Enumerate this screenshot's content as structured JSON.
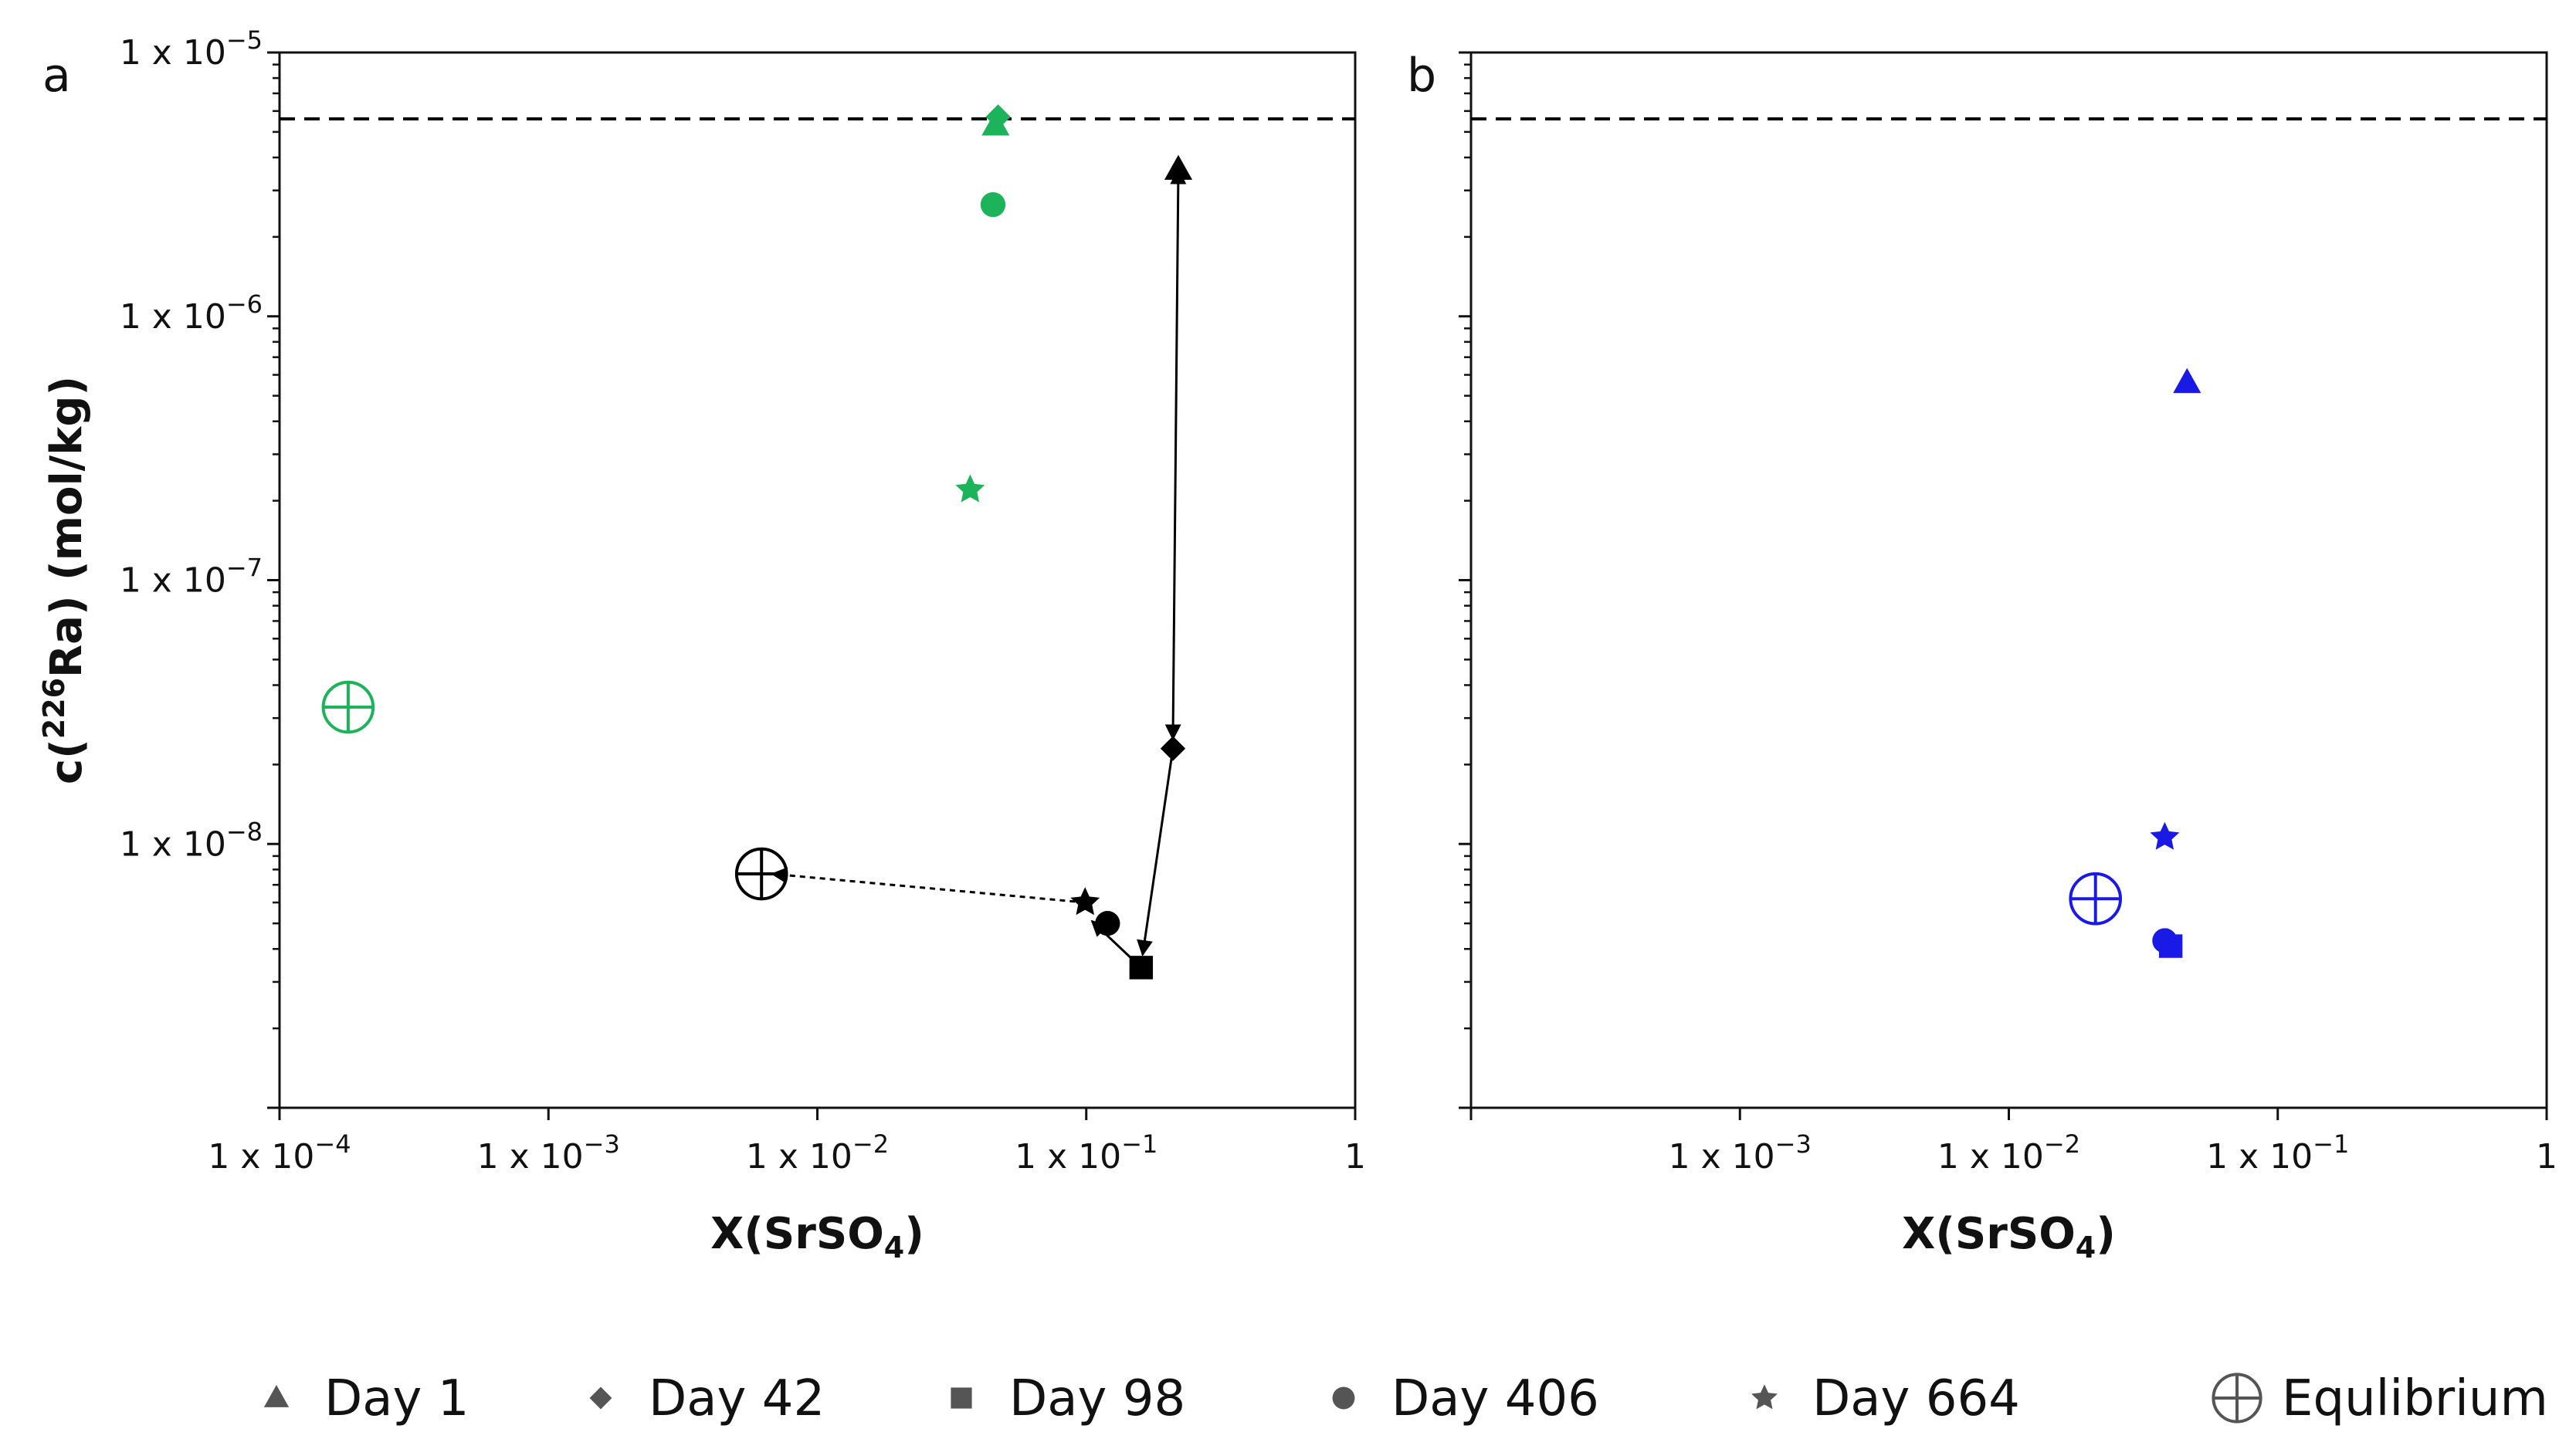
{
  "chart_data": [
    {
      "type": "scatter",
      "panel_label": "a",
      "xscale": "log",
      "yscale": "log",
      "xlim": [
        0.0001,
        1
      ],
      "ylim": [
        1e-09,
        1e-05
      ],
      "xlabel_main": "X(SrSO",
      "xlabel_sub": "4",
      "xlabel_end": ")",
      "ylabel_pre": "c(",
      "ylabel_sup": "226",
      "ylabel_post": "Ra) (mol/kg)",
      "x_ticks": [
        {
          "value": 0.0001,
          "base": "1 x 10",
          "exp": "−4"
        },
        {
          "value": 0.001,
          "base": "1 x 10",
          "exp": "−3"
        },
        {
          "value": 0.01,
          "base": "1 x 10",
          "exp": "−2"
        },
        {
          "value": 0.1,
          "base": "1 x 10",
          "exp": "−1"
        },
        {
          "value": 1,
          "base": "1",
          "exp": ""
        }
      ],
      "y_ticks": [
        {
          "value": 1e-05,
          "base": "1 x 10",
          "exp": "−5"
        },
        {
          "value": 1e-06,
          "base": "1 x 10",
          "exp": "−6"
        },
        {
          "value": 1e-07,
          "base": "1 x 10",
          "exp": "−7"
        },
        {
          "value": 1e-08,
          "base": "1 x 10",
          "exp": "−8"
        }
      ],
      "reference_line": {
        "y": 5.6e-06,
        "style": "dashed"
      },
      "series": [
        {
          "name": "green",
          "color": "#1db35a",
          "points": [
            {
              "day": "Day 1",
              "marker": "triangle",
              "x": 0.046,
              "y": 5.3e-06
            },
            {
              "day": "Day 42",
              "marker": "diamond",
              "x": 0.047,
              "y": 5.7e-06
            },
            {
              "day": "Day 406",
              "marker": "circle",
              "x": 0.045,
              "y": 2.65e-06
            },
            {
              "day": "Day 664",
              "marker": "star",
              "x": 0.037,
              "y": 2.2e-07
            },
            {
              "day": "Equlibrium",
              "marker": "equilibrium",
              "x": 0.00018,
              "y": 3.3e-08
            }
          ]
        },
        {
          "name": "black",
          "color": "#000000",
          "points": [
            {
              "day": "Day 1",
              "marker": "triangle",
              "x": 0.22,
              "y": 3.6e-06
            },
            {
              "day": "Day 42",
              "marker": "diamond",
              "x": 0.21,
              "y": 2.3e-08
            },
            {
              "day": "Day 98",
              "marker": "square",
              "x": 0.16,
              "y": 3.4e-09
            },
            {
              "day": "Day 406",
              "marker": "circle",
              "x": 0.12,
              "y": 5e-09
            },
            {
              "day": "Day 664",
              "marker": "star",
              "x": 0.099,
              "y": 6e-09
            },
            {
              "day": "Equlibrium",
              "marker": "equilibrium",
              "x": 0.0062,
              "y": 7.7e-09
            }
          ]
        }
      ],
      "arrows": [
        {
          "from": [
            0.22,
            3.6e-06
          ],
          "to": [
            0.21,
            2.5e-08
          ],
          "style": "solid",
          "heads": "both"
        },
        {
          "from": [
            0.21,
            2.3e-08
          ],
          "to": [
            0.162,
            3.8e-09
          ],
          "style": "solid",
          "heads": "end"
        },
        {
          "from": [
            0.16,
            3.4e-09
          ],
          "to": [
            0.105,
            5.1e-09
          ],
          "style": "solid",
          "heads": "end"
        },
        {
          "from": [
            0.099,
            6e-09
          ],
          "to": [
            0.0068,
            7.7e-09
          ],
          "style": "dotted",
          "heads": "end"
        }
      ]
    },
    {
      "type": "scatter",
      "panel_label": "b",
      "xscale": "log",
      "yscale": "log",
      "xlim": [
        0.0001,
        1
      ],
      "ylim": [
        1e-09,
        1e-05
      ],
      "xlabel_main": "X(SrSO",
      "xlabel_sub": "4",
      "xlabel_end": ")",
      "x_ticks": [
        {
          "value": 0.001,
          "base": "1 x 10",
          "exp": "−3"
        },
        {
          "value": 0.01,
          "base": "1 x 10",
          "exp": "−2"
        },
        {
          "value": 0.1,
          "base": "1 x 10",
          "exp": "−1"
        },
        {
          "value": 1,
          "base": "1",
          "exp": ""
        }
      ],
      "y_ticks": [],
      "reference_line": {
        "y": 5.6e-06,
        "style": "dashed"
      },
      "series": [
        {
          "name": "blue",
          "color": "#1a1ae6",
          "points": [
            {
              "day": "Day 1",
              "marker": "triangle",
              "x": 0.046,
              "y": 5.6e-07
            },
            {
              "day": "Day 42",
              "marker": "diamond",
              "x": 0.039,
              "y": 4.3e-09
            },
            {
              "day": "Day 98",
              "marker": "square",
              "x": 0.04,
              "y": 4.1e-09
            },
            {
              "day": "Day 406",
              "marker": "circle",
              "x": 0.038,
              "y": 4.3e-09
            },
            {
              "day": "Day 664",
              "marker": "star",
              "x": 0.038,
              "y": 1.06e-08
            },
            {
              "day": "Equlibrium",
              "marker": "equilibrium",
              "x": 0.021,
              "y": 6.2e-09
            }
          ]
        }
      ],
      "arrows": []
    }
  ],
  "legend": [
    {
      "label": "Day 1",
      "marker": "triangle"
    },
    {
      "label": "Day 42",
      "marker": "diamond"
    },
    {
      "label": "Day 98",
      "marker": "square"
    },
    {
      "label": "Day 406",
      "marker": "circle"
    },
    {
      "label": "Day 664",
      "marker": "star"
    },
    {
      "label": "Equlibrium",
      "marker": "equilibrium"
    }
  ],
  "colors": {
    "axis": "#111111",
    "legend_marker": "#555555"
  }
}
